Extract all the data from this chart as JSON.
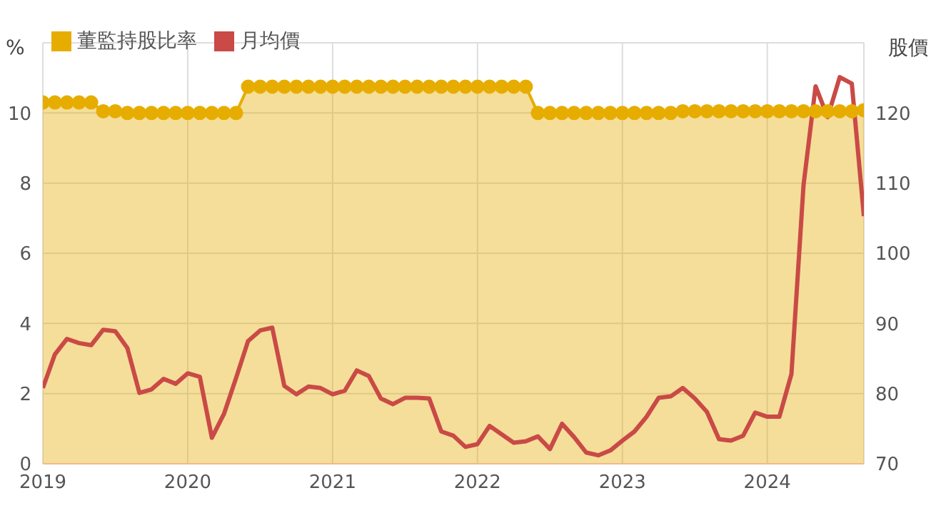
{
  "chart_data": {
    "type": "line",
    "ylabel": "%",
    "y2label": "股價",
    "x": [
      "2019-01",
      "2019-02",
      "2019-03",
      "2019-04",
      "2019-05",
      "2019-06",
      "2019-07",
      "2019-08",
      "2019-09",
      "2019-10",
      "2019-11",
      "2019-12",
      "2020-01",
      "2020-02",
      "2020-03",
      "2020-04",
      "2020-05",
      "2020-06",
      "2020-07",
      "2020-08",
      "2020-09",
      "2020-10",
      "2020-11",
      "2020-12",
      "2021-01",
      "2021-02",
      "2021-03",
      "2021-04",
      "2021-05",
      "2021-06",
      "2021-07",
      "2021-08",
      "2021-09",
      "2021-10",
      "2021-11",
      "2021-12",
      "2022-01",
      "2022-02",
      "2022-03",
      "2022-04",
      "2022-05",
      "2022-06",
      "2022-07",
      "2022-08",
      "2022-09",
      "2022-10",
      "2022-11",
      "2022-12",
      "2023-01",
      "2023-02",
      "2023-03",
      "2023-04",
      "2023-05",
      "2023-06",
      "2023-07",
      "2023-08",
      "2023-09",
      "2023-10",
      "2023-11",
      "2023-12",
      "2024-01",
      "2024-02",
      "2024-03",
      "2024-04",
      "2024-05",
      "2024-06",
      "2024-07",
      "2024-08",
      "2024-09"
    ],
    "series": [
      {
        "name": "董監持股比率",
        "type": "area",
        "color": "#e6ad00",
        "marker": "circle",
        "values": [
          10.3,
          10.3,
          10.3,
          10.3,
          10.3,
          10.05,
          10.05,
          10,
          10,
          10,
          10,
          10,
          10,
          10,
          10,
          10,
          10,
          10.75,
          10.75,
          10.75,
          10.75,
          10.75,
          10.75,
          10.75,
          10.75,
          10.75,
          10.75,
          10.75,
          10.75,
          10.75,
          10.75,
          10.75,
          10.75,
          10.75,
          10.75,
          10.75,
          10.75,
          10.75,
          10.75,
          10.75,
          10.75,
          10,
          10,
          10,
          10,
          10,
          10,
          10,
          10,
          10,
          10,
          10,
          10,
          10.05,
          10.05,
          10.05,
          10.05,
          10.05,
          10.05,
          10.05,
          10.05,
          10.05,
          10.05,
          10.05,
          10.05,
          10.05,
          10.05,
          10.05,
          10.08
        ]
      },
      {
        "name": "月均價",
        "axis": "y2",
        "color": "#c94a46",
        "marker": "none",
        "values": [
          80.8,
          85.6,
          87.8,
          87.2,
          86.9,
          89.1,
          88.9,
          86.5,
          80.1,
          80.6,
          82.1,
          81.4,
          82.9,
          82.4,
          73.7,
          77.1,
          82.2,
          87.5,
          89.0,
          89.4,
          81.1,
          79.9,
          81.0,
          80.8,
          79.9,
          80.4,
          83.3,
          82.5,
          79.3,
          78.5,
          79.4,
          79.4,
          79.3,
          74.6,
          74.0,
          72.4,
          72.8,
          75.4,
          74.2,
          73.0,
          73.2,
          73.9,
          72.1,
          75.7,
          73.8,
          71.6,
          71.2,
          71.9,
          73.3,
          74.6,
          76.7,
          79.4,
          79.6,
          80.8,
          79.3,
          77.4,
          73.5,
          73.3,
          74.0,
          77.3,
          76.7,
          76.7,
          82.8,
          109.7,
          123.8,
          119.4,
          125.1,
          124.2,
          105.3
        ]
      }
    ],
    "xlim": [
      "2019-01",
      "2024-09"
    ],
    "xticks": [
      {
        "value": "2019-01",
        "label": "2019"
      },
      {
        "value": "2020-01",
        "label": "2020"
      },
      {
        "value": "2021-01",
        "label": "2021"
      },
      {
        "value": "2022-01",
        "label": "2022"
      },
      {
        "value": "2023-01",
        "label": "2023"
      },
      {
        "value": "2024-01",
        "label": "2024"
      }
    ],
    "ylim": [
      0,
      12
    ],
    "yticks": [
      0,
      2,
      4,
      6,
      8,
      10
    ],
    "y2lim": [
      70,
      130
    ],
    "y2ticks": [
      70,
      80,
      90,
      100,
      110,
      120
    ],
    "grid": true,
    "legend": "top left"
  }
}
